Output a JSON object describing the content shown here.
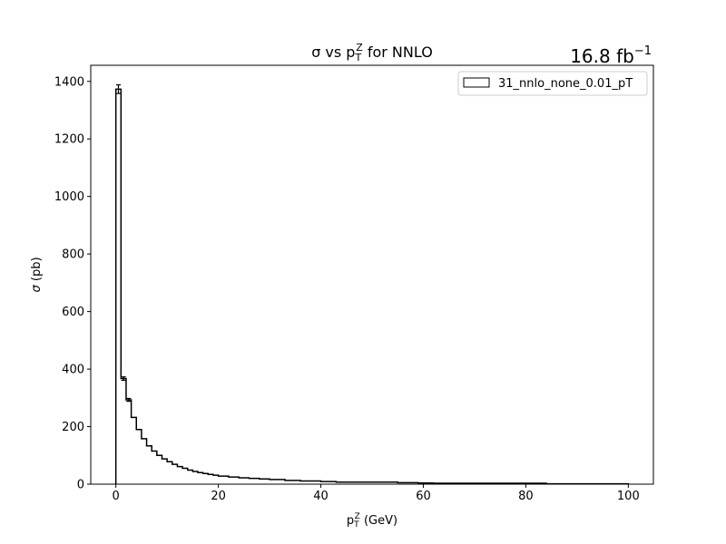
{
  "chart_data": {
    "type": "histogram-step",
    "title": {
      "main": "σ vs p",
      "sub": "T",
      "sup": "Z",
      "tail": " for NNLO"
    },
    "lumi": {
      "value": "16.8 fb",
      "sup": "−1"
    },
    "xlabel": {
      "main": "p",
      "sub": "T",
      "sup": "Z",
      "tail": " (GeV)"
    },
    "ylabel": {
      "symbol": "σ",
      "tail": " (pb)"
    },
    "xlim": [
      -4.9,
      104.9
    ],
    "ylim": [
      0,
      1456
    ],
    "xticks": [
      0,
      20,
      40,
      60,
      80,
      100
    ],
    "yticks": [
      0,
      200,
      400,
      600,
      800,
      1000,
      1200,
      1400
    ],
    "legend": {
      "label": "31_nnlo_none_0.01_pT",
      "placement": "top-right"
    },
    "grid": false,
    "series": [
      {
        "name": "31_nnlo_none_0.01_pT",
        "edges": [
          0,
          1,
          2,
          3,
          4,
          5,
          6,
          7,
          8,
          9,
          10,
          11,
          12,
          13,
          14,
          15,
          16,
          17,
          18,
          19,
          20,
          22,
          24,
          26,
          28,
          30,
          33,
          36,
          40,
          43,
          55,
          59,
          62,
          84,
          100
        ],
        "values": [
          1373,
          367,
          293,
          232,
          190,
          158,
          133,
          115,
          100,
          88,
          78,
          69,
          61,
          55,
          49,
          44,
          40,
          37,
          34,
          31,
          28,
          25,
          22,
          20,
          18,
          16,
          13,
          11,
          9,
          7,
          5,
          4,
          3,
          1
        ],
        "errors": [
          15,
          6,
          5,
          0,
          0,
          0,
          0,
          0,
          0,
          0,
          0,
          0,
          0,
          0,
          0,
          0,
          0,
          0,
          0,
          0,
          0,
          0,
          0,
          0,
          0,
          0,
          0,
          0,
          0,
          0,
          0,
          0,
          0,
          0
        ]
      }
    ]
  }
}
